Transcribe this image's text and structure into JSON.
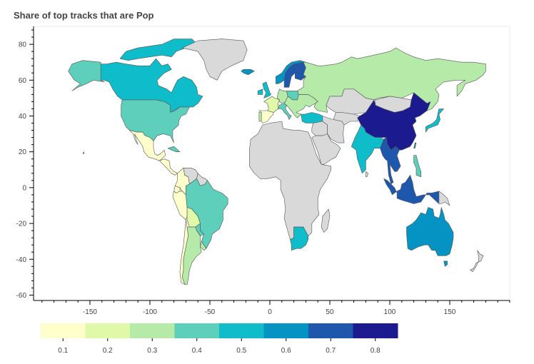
{
  "title": "Share of top tracks that are Pop",
  "chart_data": {
    "type": "choropleth",
    "title": "Share of top tracks that are Pop",
    "xlabel": "",
    "ylabel": "",
    "xlim": [
      -197,
      200
    ],
    "ylim": [
      -63,
      90
    ],
    "x_ticks": [
      -150,
      -100,
      -50,
      0,
      50,
      100,
      150
    ],
    "y_ticks": [
      80,
      60,
      40,
      20,
      0,
      -20,
      -40,
      -60
    ],
    "no_data_color": "#d9d9d9",
    "colorbar": {
      "orientation": "horizontal",
      "placement": "bottom",
      "ticks": [
        0.1,
        0.2,
        0.3,
        0.4,
        0.5,
        0.6,
        0.7,
        0.8
      ],
      "colors": [
        "#ffffcc",
        "#dff9a8",
        "#b5eaa9",
        "#5dcfbb",
        "#0fbcc9",
        "#0593c3",
        "#1e58ad",
        "#1b1b8f"
      ]
    },
    "regions": [
      {
        "name": "Canada",
        "value": 0.5
      },
      {
        "name": "Arctic Islands",
        "value": 0.5
      },
      {
        "name": "Alaska",
        "value": 0.4
      },
      {
        "name": "United States",
        "value": 0.4
      },
      {
        "name": "Mexico",
        "value": 0.1
      },
      {
        "name": "Central America",
        "value": 0.1
      },
      {
        "name": "Colombia",
        "value": 0.1
      },
      {
        "name": "Venezuela",
        "value": null
      },
      {
        "name": "Guyana",
        "value": null
      },
      {
        "name": "Ecuador",
        "value": 0.1
      },
      {
        "name": "Peru",
        "value": 0.1
      },
      {
        "name": "Brazil",
        "value": 0.4
      },
      {
        "name": "Bolivia",
        "value": 0.2
      },
      {
        "name": "Paraguay",
        "value": 0.4
      },
      {
        "name": "Chile",
        "value": 0.1
      },
      {
        "name": "Argentina",
        "value": 0.3
      },
      {
        "name": "Uruguay",
        "value": 0.3
      },
      {
        "name": "Greenland",
        "value": null
      },
      {
        "name": "Iceland",
        "value": 0.6
      },
      {
        "name": "Norway",
        "value": 0.6
      },
      {
        "name": "Sweden",
        "value": 0.7
      },
      {
        "name": "Finland",
        "value": 0.7
      },
      {
        "name": "United Kingdom",
        "value": 0.5
      },
      {
        "name": "Ireland",
        "value": 0.5
      },
      {
        "name": "Spain",
        "value": 0.1
      },
      {
        "name": "Portugal",
        "value": 0.3
      },
      {
        "name": "France",
        "value": 0.2
      },
      {
        "name": "Germany",
        "value": 0.3
      },
      {
        "name": "Poland",
        "value": 0.4
      },
      {
        "name": "Italy",
        "value": 0.4
      },
      {
        "name": "Eastern Europe",
        "value": 0.3
      },
      {
        "name": "Russia",
        "value": 0.3
      },
      {
        "name": "Turkey",
        "value": 0.5
      },
      {
        "name": "Kazakhstan",
        "value": null
      },
      {
        "name": "Central Asia",
        "value": null
      },
      {
        "name": "Middle East",
        "value": null
      },
      {
        "name": "Iran",
        "value": null
      },
      {
        "name": "Arabia",
        "value": null
      },
      {
        "name": "Mongolia",
        "value": null
      },
      {
        "name": "China",
        "value": 0.8
      },
      {
        "name": "India",
        "value": 0.5
      },
      {
        "name": "Southeast Asia",
        "value": 0.7
      },
      {
        "name": "Japan",
        "value": 0.5
      },
      {
        "name": "Taiwan",
        "value": 0.6
      },
      {
        "name": "Philippines",
        "value": 0.4
      },
      {
        "name": "Indonesia",
        "value": 0.7
      },
      {
        "name": "Papua New Guinea",
        "value": null
      },
      {
        "name": "Australia",
        "value": 0.6
      },
      {
        "name": "New Zealand",
        "value": null
      },
      {
        "name": "Tasmania",
        "value": 0.6
      },
      {
        "name": "Africa",
        "value": null
      },
      {
        "name": "Madagascar",
        "value": null
      },
      {
        "name": "South Africa",
        "value": 0.5
      },
      {
        "name": "Sri Lanka",
        "value": null
      },
      {
        "name": "Cuba",
        "value": 0.4
      },
      {
        "name": "Hawaii",
        "value": 0.4
      }
    ]
  }
}
